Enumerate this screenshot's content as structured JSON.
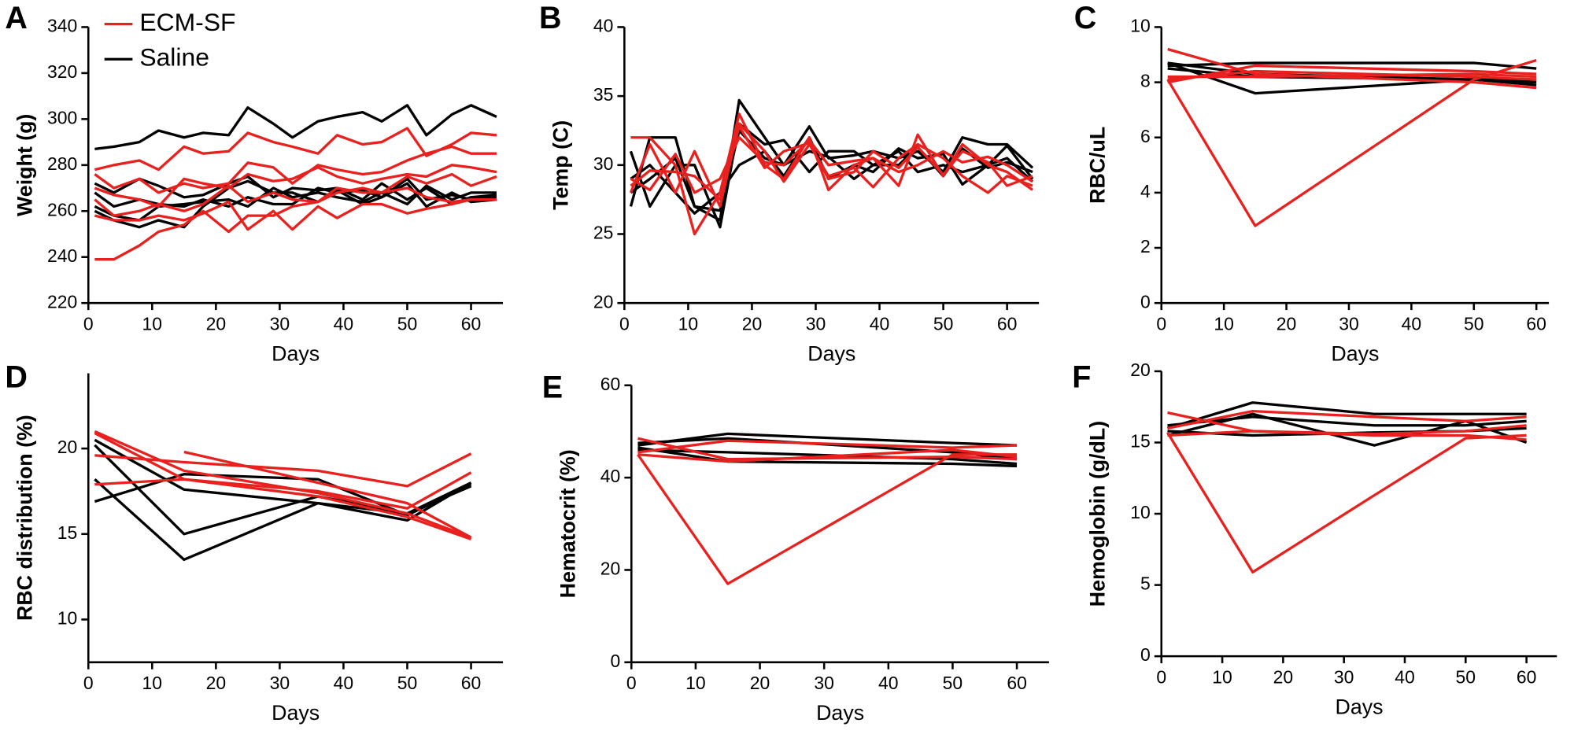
{
  "chart_data": [
    {
      "type": "line",
      "panel": "A",
      "ylabel": "Weight  (g)",
      "xlabel": "Days",
      "legend": [
        {
          "name": "ECM-SF",
          "color": "#e8211f"
        },
        {
          "name": "Saline",
          "color": "#000000"
        }
      ],
      "x": [
        1,
        4,
        8,
        11,
        15,
        18,
        22,
        25,
        29,
        32,
        36,
        39,
        43,
        46,
        50,
        53,
        57,
        60,
        64
      ],
      "xlim": [
        0,
        65
      ],
      "xticks": [
        0,
        10,
        20,
        30,
        40,
        50,
        60
      ],
      "ylim": [
        220,
        340
      ],
      "yticks": [
        220,
        240,
        260,
        280,
        300,
        320,
        340
      ],
      "series": [
        {
          "color": "#000000",
          "values": [
            287,
            288,
            290,
            295,
            292,
            294,
            293,
            305,
            298,
            292,
            299,
            301,
            303,
            299,
            306,
            293,
            302,
            306,
            301
          ]
        },
        {
          "color": "#000000",
          "values": [
            272,
            268,
            274,
            271,
            266,
            267,
            272,
            275,
            266,
            270,
            269,
            270,
            265,
            272,
            265,
            270,
            263,
            266,
            267
          ]
        },
        {
          "color": "#000000",
          "values": [
            268,
            262,
            265,
            263,
            262,
            265,
            262,
            266,
            263,
            263,
            270,
            268,
            269,
            266,
            274,
            265,
            267,
            265,
            266
          ]
        },
        {
          "color": "#000000",
          "values": [
            262,
            258,
            256,
            262,
            263,
            264,
            265,
            262,
            270,
            266,
            268,
            266,
            264,
            268,
            263,
            271,
            265,
            268,
            268
          ]
        },
        {
          "color": "#000000",
          "values": [
            260,
            256,
            253,
            256,
            253,
            262,
            270,
            273,
            268,
            268,
            264,
            269,
            263,
            266,
            272,
            262,
            268,
            264,
            265
          ]
        },
        {
          "color": "#e8211f",
          "values": [
            278,
            280,
            282,
            278,
            288,
            285,
            286,
            294,
            290,
            288,
            285,
            293,
            289,
            290,
            296,
            284,
            289,
            294,
            293
          ]
        },
        {
          "color": "#e8211f",
          "values": [
            276,
            270,
            274,
            268,
            272,
            270,
            272,
            281,
            279,
            272,
            280,
            278,
            276,
            277,
            282,
            285,
            288,
            285,
            285
          ]
        },
        {
          "color": "#e8211f",
          "values": [
            270,
            267,
            265,
            262,
            274,
            272,
            270,
            276,
            273,
            274,
            279,
            275,
            272,
            274,
            276,
            275,
            280,
            279,
            277
          ]
        },
        {
          "color": "#e8211f",
          "values": [
            265,
            258,
            260,
            263,
            260,
            263,
            271,
            264,
            268,
            265,
            264,
            268,
            270,
            268,
            275,
            272,
            276,
            271,
            275
          ]
        },
        {
          "color": "#e8211f",
          "values": [
            258,
            256,
            256,
            258,
            256,
            259,
            264,
            252,
            260,
            252,
            262,
            257,
            263,
            263,
            259,
            261,
            263,
            265,
            265
          ]
        },
        {
          "color": "#e8211f",
          "values": [
            239,
            239,
            245,
            251,
            254,
            260,
            251,
            258,
            258,
            262,
            264,
            270,
            268,
            268,
            270,
            266,
            264,
            265,
            265
          ]
        }
      ]
    },
    {
      "type": "line",
      "panel": "B",
      "ylabel": "Temp (C)",
      "xlabel": "Days",
      "x": [
        1,
        4,
        8,
        11,
        15,
        18,
        22,
        25,
        29,
        32,
        36,
        39,
        43,
        46,
        50,
        53,
        57,
        60,
        64
      ],
      "xlim": [
        0,
        65
      ],
      "xticks": [
        0,
        10,
        20,
        30,
        40,
        50,
        60
      ],
      "ylim": [
        20,
        40
      ],
      "yticks": [
        20,
        25,
        30,
        35,
        40
      ],
      "series": [
        {
          "color": "#000000",
          "values": [
            27,
            32,
            32,
            27,
            26,
            34.7,
            32,
            30,
            32.8,
            30.5,
            30.7,
            31,
            30.5,
            31,
            29.5,
            32,
            31.5,
            31.5,
            29.8
          ]
        },
        {
          "color": "#000000",
          "values": [
            31,
            27,
            30,
            30,
            25.5,
            33,
            31.5,
            31.8,
            29.5,
            31,
            31,
            30,
            31,
            29.5,
            30,
            29.5,
            30,
            31.4,
            29
          ]
        },
        {
          "color": "#000000",
          "values": [
            29,
            30,
            28,
            26.5,
            28,
            30,
            31,
            29.2,
            32,
            29,
            30,
            29.5,
            31.2,
            30.5,
            30.8,
            28.6,
            30,
            30.5,
            28.8
          ]
        },
        {
          "color": "#000000",
          "values": [
            28,
            29,
            30.5,
            27,
            26.7,
            32.5,
            30.5,
            30,
            31,
            30.6,
            29,
            30,
            30,
            31.3,
            29.2,
            31.2,
            29.8,
            30.2,
            29.5
          ]
        },
        {
          "color": "#e8211f",
          "values": [
            32,
            32,
            30,
            25,
            28,
            33.7,
            30,
            29,
            32,
            28.2,
            30,
            30.5,
            28.5,
            32.2,
            29.2,
            31.5,
            30,
            29.5,
            28.2
          ]
        },
        {
          "color": "#e8211f",
          "values": [
            28,
            31.5,
            28,
            31,
            27,
            33,
            31,
            28.8,
            31.5,
            29.2,
            29.8,
            28.4,
            30.5,
            31.5,
            30.5,
            29.2,
            28,
            29.2,
            28.5
          ]
        },
        {
          "color": "#e8211f",
          "values": [
            29,
            28.2,
            30.8,
            28,
            29,
            32,
            30.2,
            30,
            31.8,
            30,
            30.3,
            30.5,
            29.5,
            30,
            31,
            30.2,
            30.6,
            30,
            28.8
          ]
        },
        {
          "color": "#e8211f",
          "values": [
            28.5,
            29.6,
            29.5,
            29.2,
            27.5,
            32.8,
            29.8,
            31,
            31.6,
            29,
            29.5,
            31,
            29.8,
            31.3,
            29.3,
            31,
            30.2,
            28.5,
            29.2
          ]
        }
      ]
    },
    {
      "type": "line",
      "panel": "C",
      "ylabel": "RBC/uL",
      "xlabel": "Days",
      "x": [
        1,
        15,
        50,
        60
      ],
      "xlim": [
        0,
        62
      ],
      "xticks": [
        0,
        10,
        20,
        30,
        40,
        50,
        60
      ],
      "ylim": [
        0,
        10
      ],
      "yticks": [
        0,
        2,
        4,
        6,
        8,
        10
      ],
      "series": [
        {
          "color": "#000000",
          "values": [
            8.7,
            7.6,
            8.1,
            8.0
          ]
        },
        {
          "color": "#000000",
          "values": [
            8.6,
            8.7,
            8.7,
            8.5
          ]
        },
        {
          "color": "#000000",
          "values": [
            8.5,
            8.2,
            8.1,
            7.9
          ]
        },
        {
          "color": "#000000",
          "values": [
            8.7,
            8.3,
            8.1,
            8.1
          ]
        },
        {
          "color": "#e8211f",
          "values": [
            8.1,
            2.8,
            8.1,
            8.8
          ]
        },
        {
          "color": "#e8211f",
          "values": [
            9.2,
            8.3,
            8.0,
            7.8
          ]
        },
        {
          "color": "#e8211f",
          "values": [
            8.0,
            8.6,
            8.4,
            8.3
          ]
        },
        {
          "color": "#e8211f",
          "values": [
            8.1,
            8.4,
            8.2,
            8.1
          ]
        },
        {
          "color": "#e8211f",
          "values": [
            8.2,
            8.2,
            8.3,
            8.2
          ]
        }
      ]
    },
    {
      "type": "line",
      "panel": "D",
      "ylabel": "RBC distribution (%)",
      "xlabel": "Days",
      "x": [
        1,
        15,
        36,
        50,
        60
      ],
      "xlim": [
        0,
        65
      ],
      "xticks": [
        0,
        10,
        20,
        30,
        40,
        50,
        60
      ],
      "ylim": [
        7.5,
        24.4
      ],
      "yticks": [
        10,
        15,
        20
      ],
      "series": [
        {
          "color": "#000000",
          "values": [
            20.5,
            17.6,
            16.8,
            16.2,
            17.8
          ]
        },
        {
          "color": "#000000",
          "values": [
            20.2,
            15.0,
            17.2,
            16.2,
            18.0
          ]
        },
        {
          "color": "#000000",
          "values": [
            18.2,
            13.5,
            16.8,
            15.8,
            18.0
          ]
        },
        {
          "color": "#000000",
          "values": [
            16.9,
            18.5,
            18.2,
            16.1,
            17.9
          ]
        },
        {
          "color": "#e8211f",
          "values": [
            21.0,
            18.7,
            17.4,
            16.2,
            14.8
          ]
        },
        {
          "color": "#e8211f",
          "values": [
            20.9,
            18.2,
            17.2,
            16.0,
            14.7
          ]
        },
        {
          "color": "#e8211f",
          "values": [
            19.6,
            19.2,
            18.7,
            17.8,
            19.7
          ]
        },
        {
          "color": "#e8211f",
          "values": [
            17.9,
            18.2,
            17.5,
            16.5,
            18.6
          ]
        },
        {
          "color": "#e8211f",
          "values": [
            null,
            19.8,
            18.0,
            16.8,
            14.8
          ]
        }
      ]
    },
    {
      "type": "line",
      "panel": "E",
      "ylabel": "Hematocrit (%)",
      "xlabel": "Days",
      "x": [
        1,
        15,
        50,
        60
      ],
      "xlim": [
        0,
        65
      ],
      "xticks": [
        0,
        10,
        20,
        30,
        40,
        50,
        60
      ],
      "ylim": [
        0,
        60
      ],
      "yticks": [
        0,
        20,
        40,
        60
      ],
      "series": [
        {
          "color": "#000000",
          "values": [
            47,
            49.5,
            47.5,
            47
          ]
        },
        {
          "color": "#000000",
          "values": [
            46,
            45.5,
            44,
            43
          ]
        },
        {
          "color": "#000000",
          "values": [
            47.5,
            48.5,
            45.5,
            44
          ]
        },
        {
          "color": "#000000",
          "values": [
            46.5,
            43.5,
            43,
            42.5
          ]
        },
        {
          "color": "#e8211f",
          "values": [
            45,
            17,
            45,
            45
          ]
        },
        {
          "color": "#e8211f",
          "values": [
            48.5,
            44,
            44.5,
            44
          ]
        },
        {
          "color": "#e8211f",
          "values": [
            45.5,
            48,
            46.5,
            47
          ]
        },
        {
          "color": "#e8211f",
          "values": [
            45,
            43.5,
            46,
            44.5
          ]
        }
      ]
    },
    {
      "type": "line",
      "panel": "F",
      "ylabel": "Hemoglobin (g/dL)",
      "xlabel": "Days",
      "x": [
        1,
        15,
        35,
        50,
        60
      ],
      "xlim": [
        0,
        65
      ],
      "xticks": [
        0,
        10,
        20,
        30,
        40,
        50,
        60
      ],
      "ylim": [
        0,
        20
      ],
      "yticks": [
        0,
        5,
        10,
        15,
        20
      ],
      "series": [
        {
          "color": "#000000",
          "values": [
            16,
            17.8,
            17,
            17,
            17
          ]
        },
        {
          "color": "#000000",
          "values": [
            15.8,
            15.5,
            15.7,
            15.8,
            16
          ]
        },
        {
          "color": "#000000",
          "values": [
            15.5,
            17,
            14.8,
            16.5,
            15
          ]
        },
        {
          "color": "#000000",
          "values": [
            16.2,
            16.8,
            16.2,
            16.2,
            16.5
          ]
        },
        {
          "color": "#e8211f",
          "values": [
            17.1,
            15.8,
            15.5,
            15.5,
            15.2
          ]
        },
        {
          "color": "#e8211f",
          "values": [
            15.7,
            5.9,
            11.3,
            15.3,
            15.5
          ]
        },
        {
          "color": "#e8211f",
          "values": [
            16,
            17.2,
            16.8,
            16.5,
            16.8
          ]
        },
        {
          "color": "#e8211f",
          "values": [
            15.5,
            15.8,
            15.6,
            15.8,
            16.2
          ]
        }
      ]
    }
  ]
}
